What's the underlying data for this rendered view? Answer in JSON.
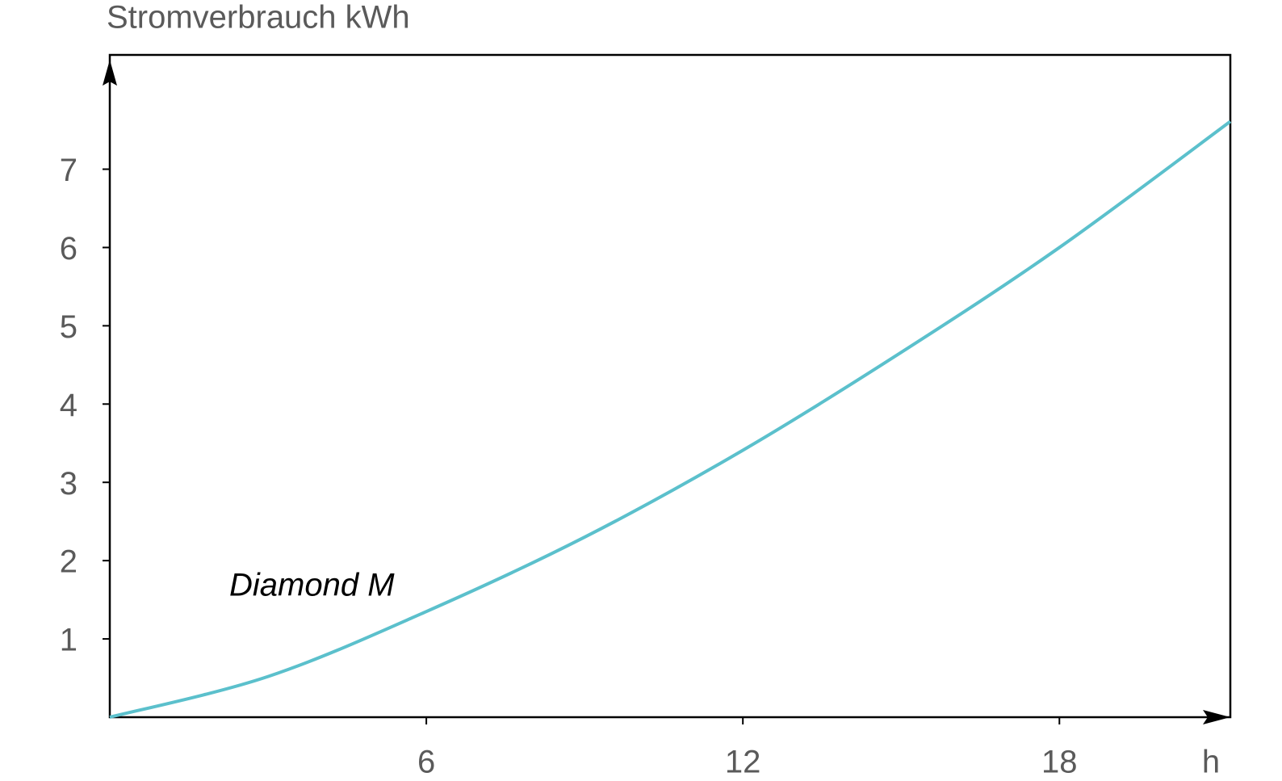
{
  "chart_data": {
    "type": "line",
    "y_label": "Stromverbrauch kWh",
    "x_label": "h",
    "x": [
      0,
      3,
      6,
      9,
      12,
      15,
      18,
      21.24
    ],
    "series": [
      {
        "name": "Diamond M",
        "color": "#5bc0cc",
        "values": [
          0,
          0.52,
          1.35,
          2.3,
          3.41,
          4.66,
          6.0,
          7.61
        ]
      }
    ],
    "xlim": [
      0,
      21.24
    ],
    "ylim": [
      0,
      8.46
    ],
    "xticks": [
      6,
      12,
      18
    ],
    "yticks": [
      1,
      2,
      3,
      4,
      5,
      6,
      7
    ],
    "grid": false
  }
}
